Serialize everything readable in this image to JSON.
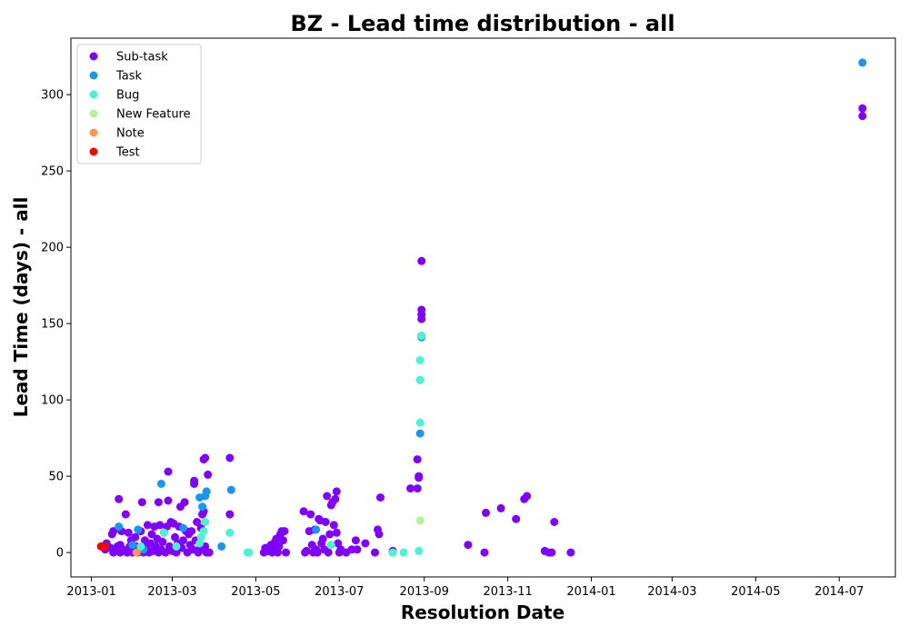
{
  "chart_data": {
    "type": "scatter",
    "title": "BZ - Lead time distribution - all",
    "xlabel": "Resolution Date",
    "ylabel": "Lead Time (days) - all",
    "x_axis_type": "date",
    "xlim": [
      "2012-12-17",
      "2014-08-11"
    ],
    "ylim": [
      -16,
      337
    ],
    "x_ticks": [
      "2013-01-01",
      "2013-03-01",
      "2013-05-01",
      "2013-07-01",
      "2013-09-01",
      "2013-11-01",
      "2014-01-01",
      "2014-03-01",
      "2014-05-01",
      "2014-07-01"
    ],
    "x_tick_labels": [
      "2013-01",
      "2013-03",
      "2013-05",
      "2013-07",
      "2013-09",
      "2013-11",
      "2014-01",
      "2014-03",
      "2014-05",
      "2014-07"
    ],
    "y_ticks": [
      0,
      50,
      100,
      150,
      200,
      250,
      300
    ],
    "y_tick_labels": [
      "0",
      "50",
      "100",
      "150",
      "200",
      "250",
      "300"
    ],
    "grid": false,
    "legend_position": "top-left",
    "series": [
      {
        "name": "Sub-task",
        "color": "#8000ff",
        "points": [
          [
            "2013-01-11",
            2
          ],
          [
            "2013-01-12",
            6
          ],
          [
            "2013-01-13",
            4
          ],
          [
            "2013-01-15",
            3
          ],
          [
            "2013-01-16",
            12
          ],
          [
            "2013-01-17",
            0
          ],
          [
            "2013-01-17",
            14
          ],
          [
            "2013-01-19",
            2
          ],
          [
            "2013-01-20",
            4
          ],
          [
            "2013-01-21",
            35
          ],
          [
            "2013-01-22",
            0
          ],
          [
            "2013-01-22",
            5
          ],
          [
            "2013-01-23",
            14
          ],
          [
            "2013-01-24",
            2
          ],
          [
            "2013-01-26",
            25
          ],
          [
            "2013-01-27",
            0
          ],
          [
            "2013-01-28",
            13
          ],
          [
            "2013-01-29",
            4
          ],
          [
            "2013-01-30",
            8
          ],
          [
            "2013-01-31",
            0
          ],
          [
            "2013-02-01",
            2
          ],
          [
            "2013-02-02",
            10
          ],
          [
            "2013-02-03",
            4
          ],
          [
            "2013-02-04",
            0
          ],
          [
            "2013-02-05",
            2
          ],
          [
            "2013-02-06",
            14
          ],
          [
            "2013-02-07",
            33
          ],
          [
            "2013-02-08",
            0
          ],
          [
            "2013-02-09",
            8
          ],
          [
            "2013-02-10",
            3
          ],
          [
            "2013-02-11",
            18
          ],
          [
            "2013-02-12",
            0
          ],
          [
            "2013-02-13",
            6
          ],
          [
            "2013-02-14",
            12
          ],
          [
            "2013-02-15",
            1
          ],
          [
            "2013-02-16",
            17
          ],
          [
            "2013-02-17",
            4
          ],
          [
            "2013-02-18",
            9
          ],
          [
            "2013-02-19",
            33
          ],
          [
            "2013-02-19",
            0
          ],
          [
            "2013-02-20",
            18
          ],
          [
            "2013-02-21",
            2
          ],
          [
            "2013-02-22",
            7
          ],
          [
            "2013-02-23",
            13
          ],
          [
            "2013-02-24",
            0
          ],
          [
            "2013-02-25",
            17
          ],
          [
            "2013-02-26",
            34
          ],
          [
            "2013-02-26",
            53
          ],
          [
            "2013-02-27",
            4
          ],
          [
            "2013-02-28",
            20
          ],
          [
            "2013-03-01",
            1
          ],
          [
            "2013-03-02",
            19
          ],
          [
            "2013-03-03",
            10
          ],
          [
            "2013-03-04",
            0
          ],
          [
            "2013-03-05",
            6
          ],
          [
            "2013-03-06",
            17
          ],
          [
            "2013-03-07",
            30
          ],
          [
            "2013-03-08",
            3
          ],
          [
            "2013-03-09",
            8
          ],
          [
            "2013-03-10",
            33
          ],
          [
            "2013-03-11",
            14
          ],
          [
            "2013-03-12",
            0
          ],
          [
            "2013-03-13",
            12
          ],
          [
            "2013-03-14",
            5
          ],
          [
            "2013-03-15",
            14
          ],
          [
            "2013-03-16",
            2
          ],
          [
            "2013-03-17",
            47
          ],
          [
            "2013-03-17",
            45
          ],
          [
            "2013-03-18",
            8
          ],
          [
            "2013-03-19",
            20
          ],
          [
            "2013-03-20",
            0
          ],
          [
            "2013-03-21",
            2
          ],
          [
            "2013-03-22",
            16
          ],
          [
            "2013-03-23",
            25
          ],
          [
            "2013-03-24",
            27
          ],
          [
            "2013-03-24",
            61
          ],
          [
            "2013-03-25",
            62
          ],
          [
            "2013-03-25",
            4
          ],
          [
            "2013-03-26",
            0
          ],
          [
            "2013-03-27",
            51
          ],
          [
            "2013-03-28",
            0
          ],
          [
            "2013-04-12",
            62
          ],
          [
            "2013-04-12",
            25
          ],
          [
            "2013-05-07",
            0
          ],
          [
            "2013-05-08",
            3
          ],
          [
            "2013-05-10",
            1
          ],
          [
            "2013-05-12",
            5
          ],
          [
            "2013-05-13",
            0
          ],
          [
            "2013-05-14",
            2
          ],
          [
            "2013-05-15",
            7
          ],
          [
            "2013-05-16",
            9
          ],
          [
            "2013-05-17",
            0
          ],
          [
            "2013-05-18",
            4
          ],
          [
            "2013-05-19",
            12
          ],
          [
            "2013-05-20",
            14
          ],
          [
            "2013-05-21",
            8
          ],
          [
            "2013-05-22",
            14
          ],
          [
            "2013-05-23",
            0
          ],
          [
            "2013-06-05",
            27
          ],
          [
            "2013-06-06",
            0
          ],
          [
            "2013-06-07",
            1
          ],
          [
            "2013-06-09",
            14
          ],
          [
            "2013-06-10",
            25
          ],
          [
            "2013-06-11",
            5
          ],
          [
            "2013-06-12",
            0
          ],
          [
            "2013-06-13",
            15
          ],
          [
            "2013-06-14",
            2
          ],
          [
            "2013-06-15",
            0
          ],
          [
            "2013-06-16",
            22
          ],
          [
            "2013-06-17",
            21
          ],
          [
            "2013-06-18",
            6
          ],
          [
            "2013-06-19",
            9
          ],
          [
            "2013-06-20",
            2
          ],
          [
            "2013-06-21",
            20
          ],
          [
            "2013-06-22",
            37
          ],
          [
            "2013-06-23",
            0
          ],
          [
            "2013-06-24",
            12
          ],
          [
            "2013-06-25",
            31
          ],
          [
            "2013-06-26",
            33
          ],
          [
            "2013-06-27",
            18
          ],
          [
            "2013-06-28",
            35
          ],
          [
            "2013-06-29",
            40
          ],
          [
            "2013-06-29",
            13
          ],
          [
            "2013-06-30",
            6
          ],
          [
            "2013-07-01",
            0
          ],
          [
            "2013-07-02",
            2
          ],
          [
            "2013-07-06",
            0
          ],
          [
            "2013-07-10",
            2
          ],
          [
            "2013-07-13",
            8
          ],
          [
            "2013-07-14",
            2
          ],
          [
            "2013-07-20",
            6
          ],
          [
            "2013-07-27",
            0
          ],
          [
            "2013-07-29",
            15
          ],
          [
            "2013-07-30",
            12
          ],
          [
            "2013-07-31",
            36
          ],
          [
            "2013-08-09",
            0
          ],
          [
            "2013-08-09",
            1
          ],
          [
            "2013-08-22",
            42
          ],
          [
            "2013-08-27",
            42
          ],
          [
            "2013-08-27",
            61
          ],
          [
            "2013-08-28",
            49
          ],
          [
            "2013-08-28",
            50
          ],
          [
            "2013-08-30",
            142
          ],
          [
            "2013-08-30",
            153
          ],
          [
            "2013-08-30",
            156
          ],
          [
            "2013-08-30",
            159
          ],
          [
            "2013-08-30",
            191
          ],
          [
            "2013-10-03",
            5
          ],
          [
            "2013-10-15",
            0
          ],
          [
            "2013-10-16",
            26
          ],
          [
            "2013-10-27",
            29
          ],
          [
            "2013-11-07",
            22
          ],
          [
            "2013-11-13",
            35
          ],
          [
            "2013-11-15",
            37
          ],
          [
            "2013-11-28",
            1
          ],
          [
            "2013-12-01",
            0
          ],
          [
            "2013-12-03",
            0
          ],
          [
            "2013-12-05",
            20
          ],
          [
            "2013-12-17",
            0
          ],
          [
            "2014-07-18",
            291
          ],
          [
            "2014-07-18",
            286
          ]
        ]
      },
      {
        "name": "Task",
        "color": "#1996f3",
        "points": [
          [
            "2013-01-21",
            17
          ],
          [
            "2013-01-31",
            5
          ],
          [
            "2013-02-04",
            15
          ],
          [
            "2013-02-08",
            2
          ],
          [
            "2013-02-21",
            45
          ],
          [
            "2013-03-09",
            16
          ],
          [
            "2013-03-21",
            36
          ],
          [
            "2013-03-23",
            30
          ],
          [
            "2013-03-25",
            37
          ],
          [
            "2013-03-26",
            40
          ],
          [
            "2013-04-06",
            4
          ],
          [
            "2013-04-13",
            41
          ],
          [
            "2013-06-14",
            15
          ],
          [
            "2013-08-29",
            78
          ],
          [
            "2013-08-29",
            113
          ],
          [
            "2013-08-30",
            141
          ],
          [
            "2014-07-18",
            321
          ]
        ]
      },
      {
        "name": "Bug",
        "color": "#4df3ce",
        "points": [
          [
            "2013-02-06",
            4
          ],
          [
            "2013-02-23",
            13
          ],
          [
            "2013-03-04",
            4
          ],
          [
            "2013-03-21",
            6
          ],
          [
            "2013-03-22",
            10
          ],
          [
            "2013-03-24",
            14
          ],
          [
            "2013-03-25",
            20
          ],
          [
            "2013-04-12",
            13
          ],
          [
            "2013-04-25",
            0
          ],
          [
            "2013-04-26",
            0
          ],
          [
            "2013-06-25",
            5
          ],
          [
            "2013-08-09",
            0
          ],
          [
            "2013-08-17",
            0
          ],
          [
            "2013-08-28",
            1
          ],
          [
            "2013-08-29",
            85
          ],
          [
            "2013-08-29",
            113
          ],
          [
            "2013-08-29",
            126
          ],
          [
            "2013-08-30",
            142
          ]
        ]
      },
      {
        "name": "New Feature",
        "color": "#b2f396",
        "points": [
          [
            "2013-08-29",
            21
          ]
        ]
      },
      {
        "name": "Note",
        "color": "#ff964f",
        "points": [
          [
            "2013-02-03",
            0
          ]
        ]
      },
      {
        "name": "Test",
        "color": "#ff0000",
        "points": [
          [
            "2013-01-08",
            4
          ],
          [
            "2013-01-11",
            4
          ]
        ]
      }
    ]
  }
}
